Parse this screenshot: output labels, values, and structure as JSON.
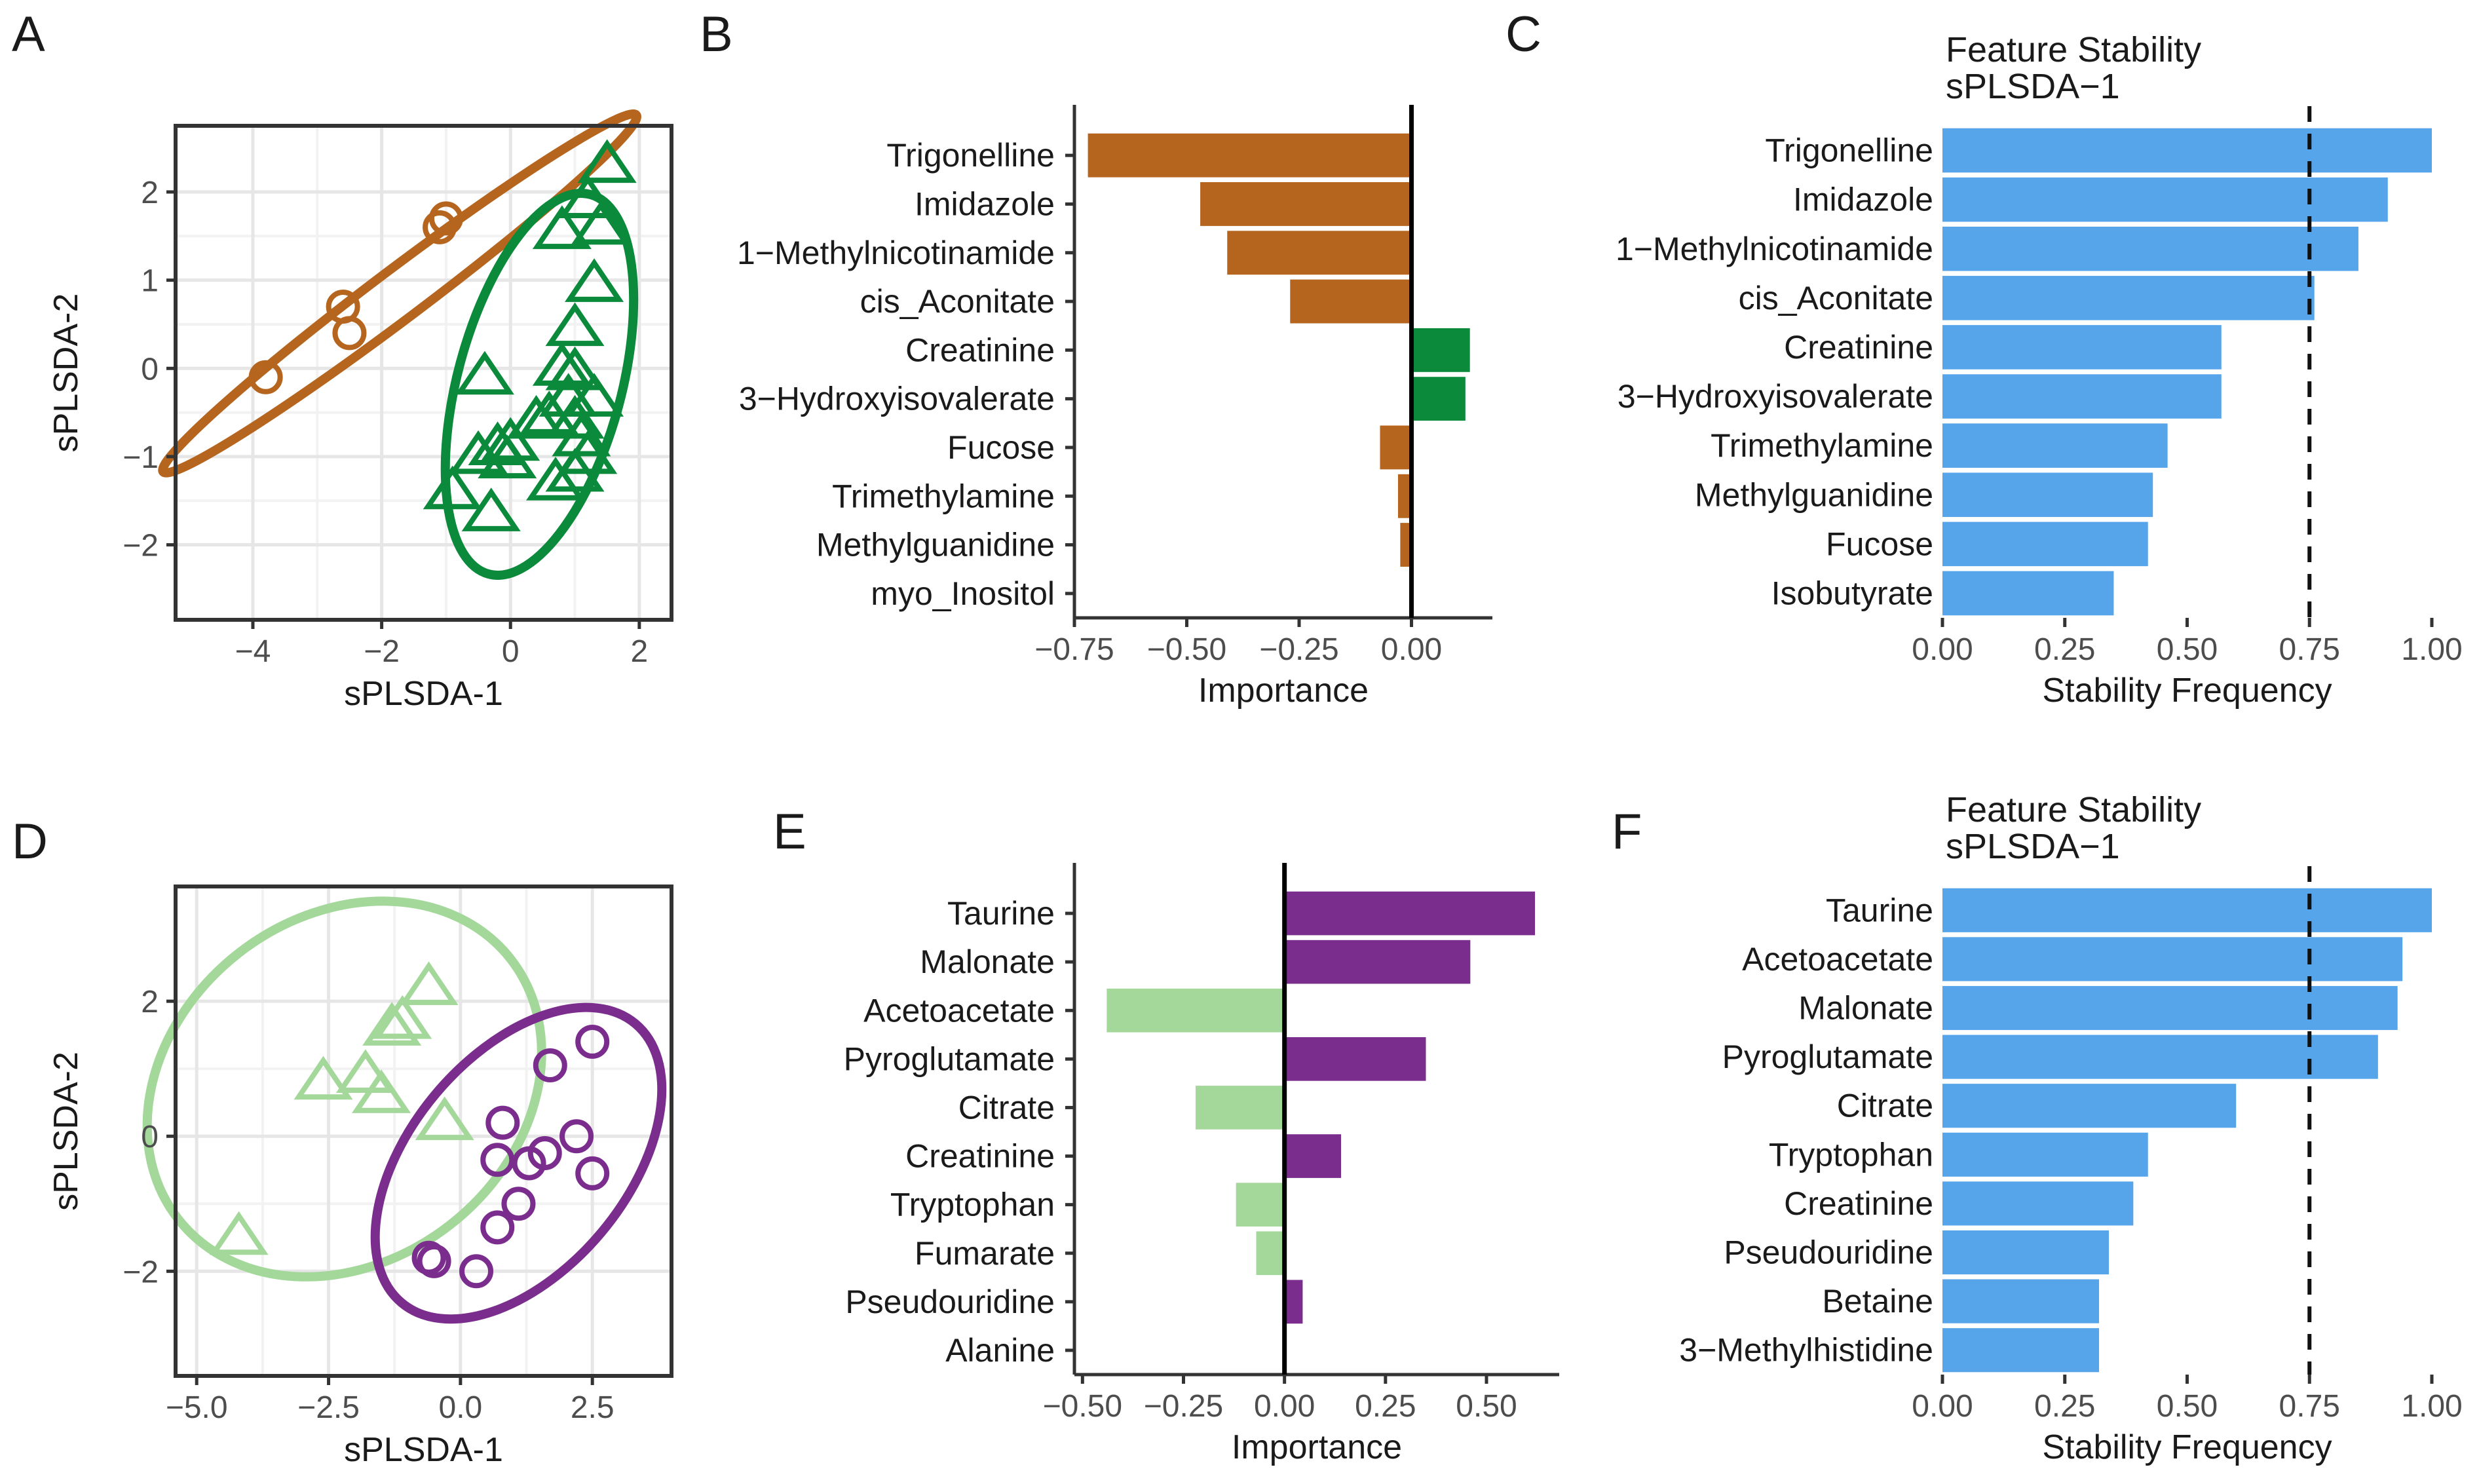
{
  "figure": {
    "panel_letters": [
      "A",
      "B",
      "C",
      "D",
      "E",
      "F"
    ]
  },
  "chart_data": [
    {
      "panel": "A",
      "type": "scatter",
      "title": "",
      "xlabel": "sPLSDA-1",
      "ylabel": "sPLSDA-2",
      "xlim": [
        -5.2,
        2.5
      ],
      "ylim": [
        -2.85,
        2.75
      ],
      "xticks": [
        -4,
        -2,
        0,
        2
      ],
      "xtick_labels": [
        "−4",
        "−2",
        "0",
        "2"
      ],
      "yticks": [
        -2,
        -1,
        0,
        1,
        2
      ],
      "ytick_labels": [
        "−2",
        "−1",
        "0",
        "1",
        "2"
      ],
      "grid": true,
      "groups": [
        {
          "name": "group1",
          "color": "#b5651d",
          "marker": "circle",
          "points": [
            [
              -1.0,
              1.7
            ],
            [
              -1.1,
              1.6
            ],
            [
              -2.6,
              0.7
            ],
            [
              -2.5,
              0.4
            ],
            [
              -3.8,
              -0.1
            ]
          ],
          "ellipse": {
            "cx": -1.72,
            "cy": 0.85,
            "rx": 4.6,
            "ry": 0.28,
            "angle": 37
          }
        },
        {
          "name": "group2",
          "color": "#0a8a3a",
          "marker": "triangle",
          "points": [
            [
              1.5,
              2.3
            ],
            [
              1.2,
              1.9
            ],
            [
              1.4,
              1.6
            ],
            [
              0.8,
              1.55
            ],
            [
              1.3,
              0.95
            ],
            [
              1.0,
              0.45
            ],
            [
              0.8,
              0.0
            ],
            [
              1.0,
              -0.05
            ],
            [
              -0.4,
              -0.1
            ],
            [
              1.3,
              -0.35
            ],
            [
              0.9,
              -0.35
            ],
            [
              0.6,
              -0.55
            ],
            [
              1.0,
              -0.6
            ],
            [
              0.4,
              -0.6
            ],
            [
              1.1,
              -0.8
            ],
            [
              0.0,
              -0.85
            ],
            [
              -0.2,
              -0.9
            ],
            [
              1.2,
              -1.0
            ],
            [
              -0.5,
              -1.0
            ],
            [
              -0.05,
              -1.05
            ],
            [
              0.7,
              -1.3
            ],
            [
              -0.9,
              -1.4
            ],
            [
              -0.3,
              -1.65
            ],
            [
              1.0,
              -1.2
            ]
          ],
          "ellipse": {
            "cx": 0.45,
            "cy": -0.18,
            "rx": 3.05,
            "ry": 0.93,
            "angle": 75
          }
        }
      ]
    },
    {
      "panel": "B",
      "type": "bar",
      "orientation": "horizontal",
      "title": "",
      "xlabel": "Importance",
      "ylabel": "",
      "categories": [
        "Trigonelline",
        "Imidazole",
        "1−Methylnicotinamide",
        "cis_Aconitate",
        "Creatinine",
        "3−Hydroxyisovalerate",
        "Fucose",
        "Trimethylamine",
        "Methylguanidine",
        "myo_Inositol"
      ],
      "values": [
        -0.72,
        -0.47,
        -0.41,
        -0.27,
        0.13,
        0.12,
        -0.07,
        -0.03,
        -0.025,
        0.0
      ],
      "colors": [
        "#b5651d",
        "#b5651d",
        "#b5651d",
        "#b5651d",
        "#0a8a3a",
        "#0a8a3a",
        "#b5651d",
        "#b5651d",
        "#b5651d",
        "#b5651d"
      ],
      "xlim": [
        -0.75,
        0.18
      ],
      "xticks": [
        -0.75,
        -0.5,
        -0.25,
        0.0
      ],
      "xtick_labels": [
        "−0.75",
        "−0.50",
        "−0.25",
        "0.00"
      ]
    },
    {
      "panel": "C",
      "type": "bar",
      "orientation": "horizontal",
      "title": "Feature Stability",
      "subtitle": "sPLSDA−1",
      "xlabel": "Stability Frequency",
      "ylabel": "",
      "categories": [
        "Trigonelline",
        "Imidazole",
        "1−Methylnicotinamide",
        "cis_Aconitate",
        "Creatinine",
        "3−Hydroxyisovalerate",
        "Trimethylamine",
        "Methylguanidine",
        "Fucose",
        "Isobutyrate"
      ],
      "values": [
        1.0,
        0.91,
        0.85,
        0.76,
        0.57,
        0.57,
        0.46,
        0.43,
        0.42,
        0.35
      ],
      "color": "#56a4ea",
      "threshold": 0.75,
      "xlim": [
        0,
        1.0
      ],
      "xticks": [
        0,
        0.25,
        0.5,
        0.75,
        1.0
      ],
      "xtick_labels": [
        "0.00",
        "0.25",
        "0.50",
        "0.75",
        "1.00"
      ]
    },
    {
      "panel": "D",
      "type": "scatter",
      "title": "",
      "xlabel": "sPLSDA-1",
      "ylabel": "sPLSDA-2",
      "xlim": [
        -5.4,
        4.0
      ],
      "ylim": [
        -3.55,
        3.7
      ],
      "xticks": [
        -5.0,
        -2.5,
        0.0,
        2.5
      ],
      "xtick_labels": [
        "−5.0",
        "−2.5",
        "0.0",
        "2.5"
      ],
      "yticks": [
        -2,
        0,
        2
      ],
      "ytick_labels": [
        "−2",
        "0",
        "2"
      ],
      "grid": true,
      "groups": [
        {
          "name": "group1",
          "color": "#a3d89a",
          "marker": "triangle",
          "points": [
            [
              -0.6,
              2.2
            ],
            [
              -1.1,
              1.7
            ],
            [
              -1.3,
              1.6
            ],
            [
              -2.6,
              0.8
            ],
            [
              -1.8,
              0.9
            ],
            [
              -1.5,
              0.6
            ],
            [
              -0.3,
              0.2
            ],
            [
              -4.2,
              -1.5
            ]
          ],
          "ellipse": {
            "cx": -2.2,
            "cy": 0.7,
            "rx": 4.0,
            "ry": 2.55,
            "angle": 38
          }
        },
        {
          "name": "group2",
          "color": "#7b2d8e",
          "marker": "circle",
          "points": [
            [
              2.5,
              1.4
            ],
            [
              1.7,
              1.05
            ],
            [
              0.8,
              0.2
            ],
            [
              2.2,
              0.0
            ],
            [
              0.7,
              -0.35
            ],
            [
              1.6,
              -0.25
            ],
            [
              1.3,
              -0.4
            ],
            [
              2.5,
              -0.55
            ],
            [
              1.1,
              -1.0
            ],
            [
              0.7,
              -1.35
            ],
            [
              -0.6,
              -1.8
            ],
            [
              -0.5,
              -1.85
            ],
            [
              0.3,
              -2.0
            ]
          ],
          "ellipse": {
            "cx": 1.1,
            "cy": -0.4,
            "rx": 3.45,
            "ry": 1.6,
            "angle": 50
          }
        }
      ]
    },
    {
      "panel": "E",
      "type": "bar",
      "orientation": "horizontal",
      "title": "",
      "xlabel": "Importance",
      "ylabel": "",
      "categories": [
        "Taurine",
        "Malonate",
        "Acetoacetate",
        "Pyroglutamate",
        "Citrate",
        "Creatinine",
        "Tryptophan",
        "Fumarate",
        "Pseudouridine",
        "Alanine"
      ],
      "values": [
        0.62,
        0.46,
        -0.44,
        0.35,
        -0.22,
        0.14,
        -0.12,
        -0.07,
        0.045,
        0.0
      ],
      "colors": [
        "#7b2d8e",
        "#7b2d8e",
        "#a3d89a",
        "#7b2d8e",
        "#a3d89a",
        "#7b2d8e",
        "#a3d89a",
        "#a3d89a",
        "#7b2d8e",
        "#7b2d8e"
      ],
      "xlim": [
        -0.52,
        0.68
      ],
      "xticks": [
        -0.5,
        -0.25,
        0.0,
        0.25,
        0.5
      ],
      "xtick_labels": [
        "−0.50",
        "−0.25",
        "0.00",
        "0.25",
        "0.50"
      ]
    },
    {
      "panel": "F",
      "type": "bar",
      "orientation": "horizontal",
      "title": "Feature Stability",
      "subtitle": "sPLSDA−1",
      "xlabel": "Stability Frequency",
      "ylabel": "",
      "categories": [
        "Taurine",
        "Acetoacetate",
        "Malonate",
        "Pyroglutamate",
        "Citrate",
        "Tryptophan",
        "Creatinine",
        "Pseudouridine",
        "Betaine",
        "3−Methylhistidine"
      ],
      "values": [
        1.0,
        0.94,
        0.93,
        0.89,
        0.6,
        0.42,
        0.39,
        0.34,
        0.32,
        0.32
      ],
      "color": "#56a4ea",
      "threshold": 0.75,
      "xlim": [
        0,
        1.0
      ],
      "xticks": [
        0,
        0.25,
        0.5,
        0.75,
        1.0
      ],
      "xtick_labels": [
        "0.00",
        "0.25",
        "0.50",
        "0.75",
        "1.00"
      ]
    }
  ]
}
